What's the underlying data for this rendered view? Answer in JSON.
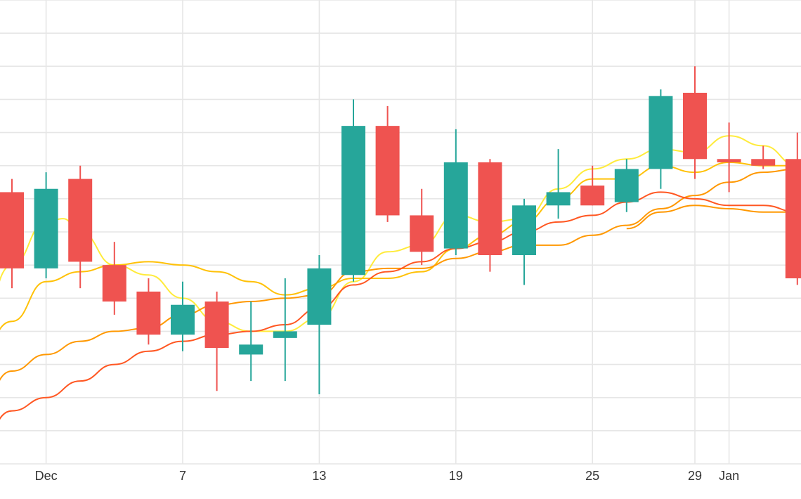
{
  "chart_data": {
    "type": "candlestick",
    "title": "",
    "xlabel": "",
    "ylabel": "",
    "ylim": [
      0,
      14
    ],
    "grid": true,
    "legend": "none",
    "x_tick_labels": [
      {
        "label": "Dec",
        "x": 2
      },
      {
        "label": "7",
        "x": 6
      },
      {
        "label": "13",
        "x": 10
      },
      {
        "label": "19",
        "x": 14
      },
      {
        "label": "25",
        "x": 18
      },
      {
        "label": "29",
        "x": 21
      },
      {
        "label": "Jan",
        "x": 22
      }
    ],
    "colors": {
      "up": "#26a69a",
      "down": "#ef5350",
      "grid": "#e6e6e6",
      "ma_fast": "#ffeb3b",
      "ma_mid": "#ffc107",
      "ma_slow": "#ff9800",
      "ma_slowest": "#ff5722"
    },
    "candles": [
      {
        "x": 1,
        "open": 8.2,
        "high": 8.6,
        "low": 5.3,
        "close": 5.9
      },
      {
        "x": 2,
        "open": 5.9,
        "high": 8.8,
        "low": 5.6,
        "close": 8.3
      },
      {
        "x": 3,
        "open": 8.6,
        "high": 9.0,
        "low": 5.3,
        "close": 6.1
      },
      {
        "x": 4,
        "open": 6.0,
        "high": 6.7,
        "low": 4.5,
        "close": 4.9
      },
      {
        "x": 5,
        "open": 5.2,
        "high": 5.6,
        "low": 3.6,
        "close": 3.9
      },
      {
        "x": 6,
        "open": 3.9,
        "high": 5.5,
        "low": 3.4,
        "close": 4.8
      },
      {
        "x": 7,
        "open": 4.9,
        "high": 5.2,
        "low": 2.2,
        "close": 3.5
      },
      {
        "x": 8,
        "open": 3.3,
        "high": 4.9,
        "low": 2.5,
        "close": 3.6
      },
      {
        "x": 9,
        "open": 3.8,
        "high": 5.6,
        "low": 2.5,
        "close": 4.0
      },
      {
        "x": 10,
        "open": 4.2,
        "high": 6.3,
        "low": 2.1,
        "close": 5.9
      },
      {
        "x": 11,
        "open": 5.7,
        "high": 11.0,
        "low": 5.5,
        "close": 10.2
      },
      {
        "x": 12,
        "open": 10.2,
        "high": 10.8,
        "low": 7.3,
        "close": 7.5
      },
      {
        "x": 13,
        "open": 7.5,
        "high": 8.3,
        "low": 6.0,
        "close": 6.4
      },
      {
        "x": 14,
        "open": 6.5,
        "high": 10.1,
        "low": 6.3,
        "close": 9.1
      },
      {
        "x": 15,
        "open": 9.1,
        "high": 9.2,
        "low": 5.8,
        "close": 6.3
      },
      {
        "x": 16,
        "open": 6.3,
        "high": 8.0,
        "low": 5.4,
        "close": 7.8
      },
      {
        "x": 17,
        "open": 7.8,
        "high": 9.5,
        "low": 7.4,
        "close": 8.2
      },
      {
        "x": 18,
        "open": 8.4,
        "high": 9.0,
        "low": 7.8,
        "close": 7.8
      },
      {
        "x": 19,
        "open": 7.9,
        "high": 9.2,
        "low": 7.6,
        "close": 8.9
      },
      {
        "x": 20,
        "open": 8.9,
        "high": 11.3,
        "low": 8.3,
        "close": 11.1
      },
      {
        "x": 21,
        "open": 11.2,
        "high": 12.0,
        "low": 8.6,
        "close": 9.2
      },
      {
        "x": 22,
        "open": 9.2,
        "high": 10.3,
        "low": 8.2,
        "close": 9.1
      },
      {
        "x": 23,
        "open": 9.2,
        "high": 9.6,
        "low": 8.9,
        "close": 9.0
      },
      {
        "x": 24,
        "open": 9.2,
        "high": 10.0,
        "low": 5.4,
        "close": 5.6
      }
    ],
    "series": [
      {
        "line": "ma_fast",
        "values": [
          [
            0,
            4.1
          ],
          [
            1,
            6.0
          ],
          [
            2,
            7.3
          ],
          [
            2.5,
            7.4
          ],
          [
            3,
            7.0
          ],
          [
            4,
            6.0
          ],
          [
            5,
            5.7
          ],
          [
            6,
            5.0
          ],
          [
            7,
            4.3
          ],
          [
            8,
            4.0
          ],
          [
            9,
            4.0
          ],
          [
            10,
            4.4
          ],
          [
            11,
            5.5
          ],
          [
            12,
            6.4
          ],
          [
            13,
            6.6
          ],
          [
            14,
            7.5
          ],
          [
            15,
            7.3
          ],
          [
            16,
            7.4
          ],
          [
            17,
            8.3
          ],
          [
            18,
            8.9
          ],
          [
            19,
            9.2
          ],
          [
            20,
            9.5
          ],
          [
            21,
            9.4
          ],
          [
            22,
            9.9
          ],
          [
            23,
            9.6
          ],
          [
            24,
            9.0
          ]
        ]
      },
      {
        "line": "ma_mid",
        "values": [
          [
            0,
            3.3
          ],
          [
            1,
            4.3
          ],
          [
            2,
            5.5
          ],
          [
            3,
            5.8
          ],
          [
            4,
            6.0
          ],
          [
            5,
            6.1
          ],
          [
            6,
            6.0
          ],
          [
            7,
            5.8
          ],
          [
            8,
            5.5
          ],
          [
            9,
            5.1
          ],
          [
            10,
            5.3
          ],
          [
            11,
            5.6
          ],
          [
            12,
            5.6
          ],
          [
            13,
            5.8
          ],
          [
            14,
            6.5
          ],
          [
            15,
            6.9
          ],
          [
            16,
            7.3
          ],
          [
            17,
            8.0
          ],
          [
            18,
            8.6
          ],
          [
            19,
            8.6
          ],
          [
            20,
            9.0
          ],
          [
            21,
            8.8
          ],
          [
            22,
            9.1
          ],
          [
            23,
            9.0
          ],
          [
            24,
            9.0
          ]
        ]
      },
      {
        "line": "ma_slow",
        "values": [
          [
            0,
            1.7
          ],
          [
            1,
            2.8
          ],
          [
            2,
            3.3
          ],
          [
            3,
            3.7
          ],
          [
            4,
            4.0
          ],
          [
            5,
            4.1
          ],
          [
            6,
            4.5
          ],
          [
            7,
            4.8
          ],
          [
            8,
            4.9
          ],
          [
            9,
            5.0
          ],
          [
            10,
            5.1
          ],
          [
            11,
            5.8
          ],
          [
            12,
            5.9
          ],
          [
            13,
            5.9
          ],
          [
            14,
            6.2
          ],
          [
            15,
            6.4
          ],
          [
            16,
            6.6
          ],
          [
            17,
            6.6
          ],
          [
            18,
            6.9
          ],
          [
            19,
            7.2
          ],
          [
            20,
            7.7
          ],
          [
            21,
            8.1
          ],
          [
            22,
            8.5
          ],
          [
            23,
            8.8
          ],
          [
            24,
            8.9
          ]
        ]
      },
      {
        "line": "ma_slowest",
        "values": [
          [
            0,
            0.6
          ],
          [
            1,
            1.6
          ],
          [
            2,
            2.0
          ],
          [
            3,
            2.5
          ],
          [
            4,
            3.0
          ],
          [
            5,
            3.4
          ],
          [
            6,
            3.7
          ],
          [
            7,
            3.9
          ],
          [
            8,
            4.0
          ],
          [
            9,
            4.2
          ],
          [
            10,
            4.7
          ],
          [
            11,
            5.4
          ],
          [
            12,
            5.8
          ],
          [
            13,
            6.1
          ],
          [
            14,
            6.5
          ],
          [
            15,
            6.7
          ],
          [
            16,
            7.0
          ],
          [
            17,
            7.3
          ],
          [
            18,
            7.5
          ],
          [
            19,
            7.9
          ],
          [
            20,
            8.2
          ],
          [
            21,
            8.0
          ],
          [
            22,
            7.8
          ],
          [
            23,
            7.8
          ],
          [
            24,
            7.6
          ]
        ]
      },
      {
        "line": "ma_slow",
        "values": [
          [
            19,
            7.1
          ],
          [
            20,
            7.6
          ],
          [
            21,
            7.8
          ],
          [
            22,
            7.7
          ],
          [
            23,
            7.6
          ],
          [
            24,
            7.6
          ]
        ]
      }
    ]
  }
}
